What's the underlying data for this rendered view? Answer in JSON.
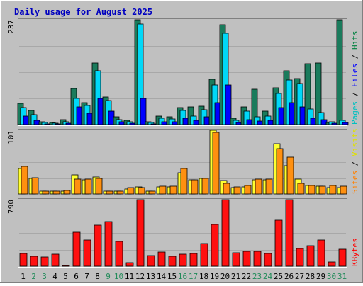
{
  "chart_data": {
    "type": "bar",
    "title": "Daily usage for August 2025",
    "days": [
      "1",
      "2",
      "3",
      "4",
      "5",
      "6",
      "7",
      "8",
      "9",
      "10",
      "11",
      "12",
      "13",
      "14",
      "15",
      "16",
      "17",
      "18",
      "19",
      "20",
      "21",
      "22",
      "23",
      "24",
      "25",
      "26",
      "27",
      "28",
      "29",
      "30",
      "31"
    ],
    "weekend_color": "#228b5a",
    "weekday_color": "#000000",
    "weekend_days": [
      "2",
      "3",
      "9",
      "10",
      "16",
      "17",
      "23",
      "24",
      "30",
      "31"
    ],
    "panels": [
      {
        "id": "hits-files-pages",
        "ymax": 237,
        "ymax_label": "237",
        "legend": [
          {
            "label": "Pages",
            "color": "#00c0c0"
          },
          {
            "sep": " / "
          },
          {
            "label": "Files",
            "color": "#0000ff"
          },
          {
            "sep": " / "
          },
          {
            "label": "Hits",
            "color": "#008040"
          }
        ],
        "series": [
          {
            "name": "Hits",
            "color": "#1a7b5c",
            "values": [
              48,
              32,
              6,
              5,
              12,
              82,
              50,
              139,
              62,
              17,
              10,
              237,
              7,
              20,
              17,
              38,
              40,
              41,
              103,
              226,
              14,
              40,
              80,
              30,
              83,
              122,
              104,
              138,
              139,
              5,
              237
            ]
          },
          {
            "name": "Files",
            "color": "#00d8f8",
            "values": [
              38,
              22,
              5,
              3,
              6,
              60,
              43,
              122,
              55,
              12,
              7,
              228,
              5,
              14,
              13,
              32,
              20,
              34,
              89,
              207,
              10,
              30,
              17,
              20,
              70,
              101,
              93,
              35,
              27,
              7,
              10
            ]
          },
          {
            "name": "Pages",
            "color": "#0000ff",
            "values": [
              20,
              10,
              2,
              1,
              3,
              40,
              25,
              60,
              30,
              6,
              3,
              60,
              2,
              7,
              6,
              15,
              9,
              18,
              50,
              90,
              5,
              12,
              8,
              10,
              38,
              50,
              40,
              15,
              12,
              3,
              5
            ]
          }
        ]
      },
      {
        "id": "visits-sites",
        "ymax": 101,
        "ymax_label": "101",
        "legend": [
          {
            "label": "Sites",
            "color": "#ff8000"
          },
          {
            "sep": " / "
          },
          {
            "label": "Visits",
            "color": "#e0e000"
          }
        ],
        "series": [
          {
            "name": "Visits",
            "color": "#ffff30",
            "values": [
              40,
              25,
              4,
              4,
              4,
              30,
              22,
              27,
              4,
              4,
              8,
              11,
              4,
              11,
              11,
              34,
              23,
              25,
              101,
              21,
              10,
              11,
              22,
              22,
              80,
              45,
              24,
              13,
              12,
              10,
              10
            ]
          },
          {
            "name": "Sites",
            "color": "#ff9010",
            "values": [
              44,
              26,
              5,
              5,
              6,
              24,
              24,
              25,
              5,
              5,
              10,
              10,
              5,
              12,
              12,
              40,
              22,
              25,
              98,
              17,
              11,
              14,
              24,
              24,
              72,
              58,
              17,
              14,
              12,
              13,
              12
            ]
          }
        ]
      },
      {
        "id": "kbytes",
        "ymax": 790,
        "ymax_label": "790",
        "legend": [
          {
            "label": "KBytes",
            "color": "#ff0000"
          }
        ],
        "series": [
          {
            "name": "KBytes",
            "color": "#ff1010",
            "values": [
              150,
              120,
              110,
              140,
              10,
              400,
              310,
              490,
              530,
              290,
              40,
              790,
              130,
              170,
              120,
              140,
              150,
              270,
              500,
              790,
              160,
              180,
              180,
              150,
              550,
              790,
              210,
              240,
              310,
              50,
              200
            ]
          }
        ]
      }
    ]
  }
}
